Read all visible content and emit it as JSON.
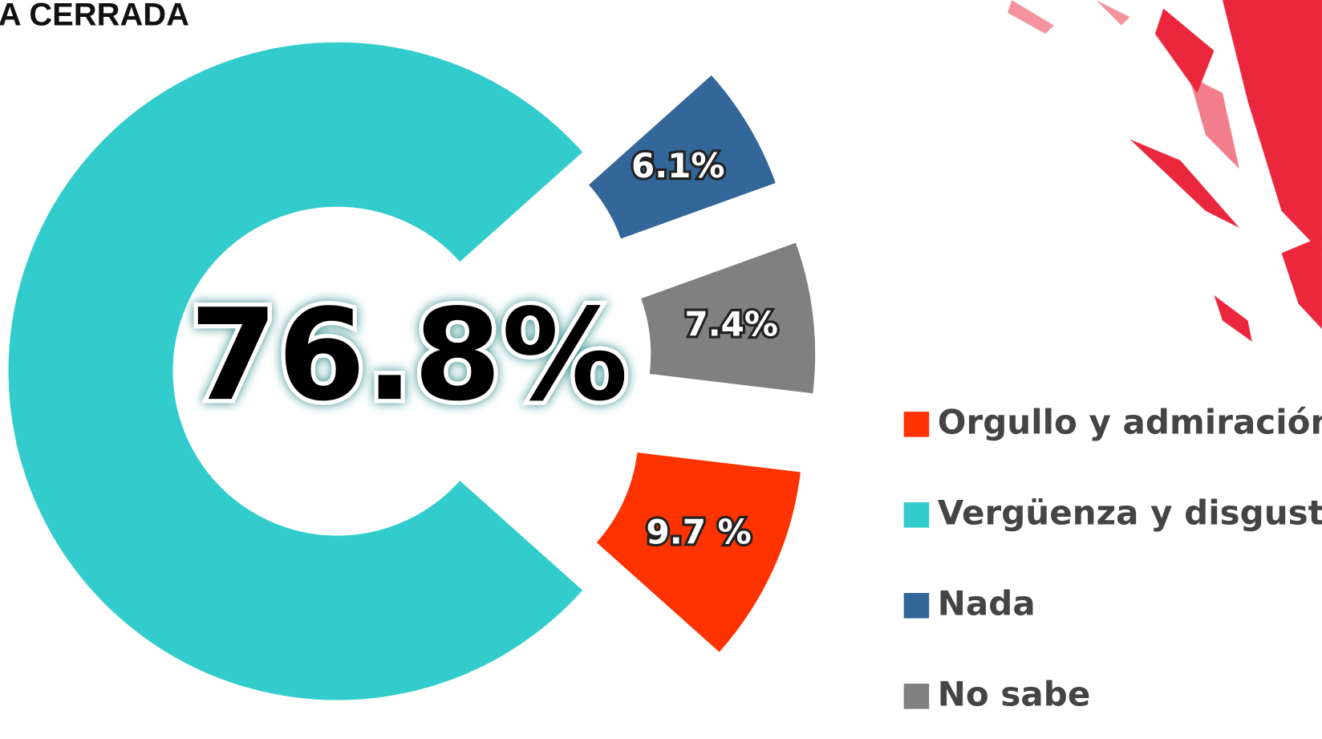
{
  "chart_data": {
    "type": "donut",
    "title": "A CERRADA",
    "categories": [
      "Orgullo y admiración",
      "Vergüenza y disgusto",
      "Nada",
      "No sabe"
    ],
    "values": [
      9.7,
      76.8,
      6.1,
      7.4
    ],
    "value_labels": [
      "9.7 %",
      "76.8%",
      "6.1%",
      "7.4%"
    ],
    "colors": [
      "#ff3300",
      "#33cccc",
      "#336699",
      "#808080"
    ]
  }
}
